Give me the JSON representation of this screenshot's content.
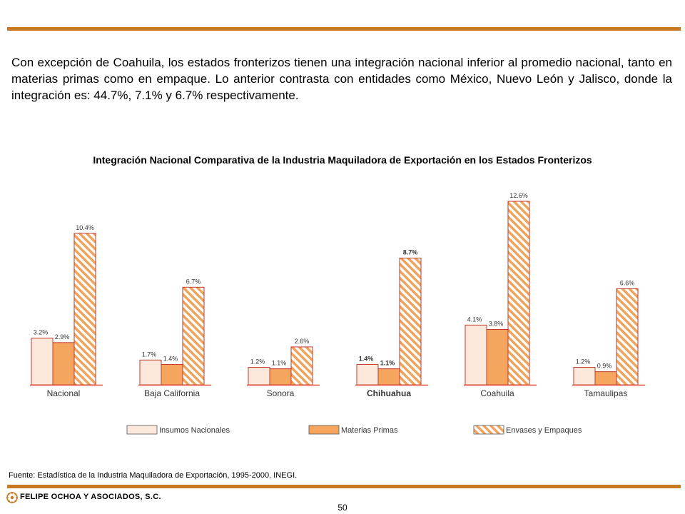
{
  "intro_text": "Con excepción de Coahuila, los estados fronterizos tienen una integración nacional inferior al promedio nacional, tanto en materias primas como en empaque. Lo anterior contrasta con entidades como México, Nuevo León y Jalisco, donde la integración es: 44.7%, 7.1% y 6.7% respectivamente.",
  "source_note": "Fuente: Estadística de la Industria Maquiladora de Exportación, 1995-2000. INEGI.",
  "footer": {
    "company": "FELIPE OCHOA Y ASOCIADOS, S.C.",
    "page_number": "50"
  },
  "colors": {
    "rule": "#c8781e",
    "insumos_fill": "#fde9dc",
    "materias_fill": "#f6a55e",
    "envases_hatch": "#f0a35a",
    "bar_stroke": "#c0392b",
    "baseline": "#e74c3c"
  },
  "chart_data": {
    "type": "bar",
    "title": "Integración Nacional Comparativa de la Industria Maquiladora de Exportación en los Estados Fronterizos",
    "categories": [
      "Nacional",
      "Baja California",
      "Sonora",
      "Chihuahua",
      "Coahuila",
      "Tamaulipas"
    ],
    "bold_categories": [
      "Chihuahua"
    ],
    "series": [
      {
        "name": "Insumos Nacionales",
        "values": [
          3.2,
          1.7,
          1.2,
          1.4,
          4.1,
          1.2
        ],
        "labels": [
          "3.2%",
          "1.7%",
          "1.2%",
          "1.4%",
          "4.1%",
          "1.2%"
        ]
      },
      {
        "name": "Materias Primas",
        "values": [
          2.9,
          1.4,
          1.1,
          1.1,
          3.8,
          0.9
        ],
        "labels": [
          "2.9%",
          "1.4%",
          "1.1%",
          "1.1%",
          "3.8%",
          "0.9%"
        ]
      },
      {
        "name": "Envases y Empaques",
        "values": [
          10.4,
          6.7,
          2.6,
          8.7,
          12.6,
          6.6
        ],
        "labels": [
          "10.4%",
          "6.7%",
          "2.6%",
          "8.7%",
          "12.6%",
          "6.6%"
        ]
      }
    ],
    "ylim": [
      0,
      12.6
    ],
    "legend_position": "bottom",
    "grid": false,
    "axis_ticks_shown": false
  }
}
